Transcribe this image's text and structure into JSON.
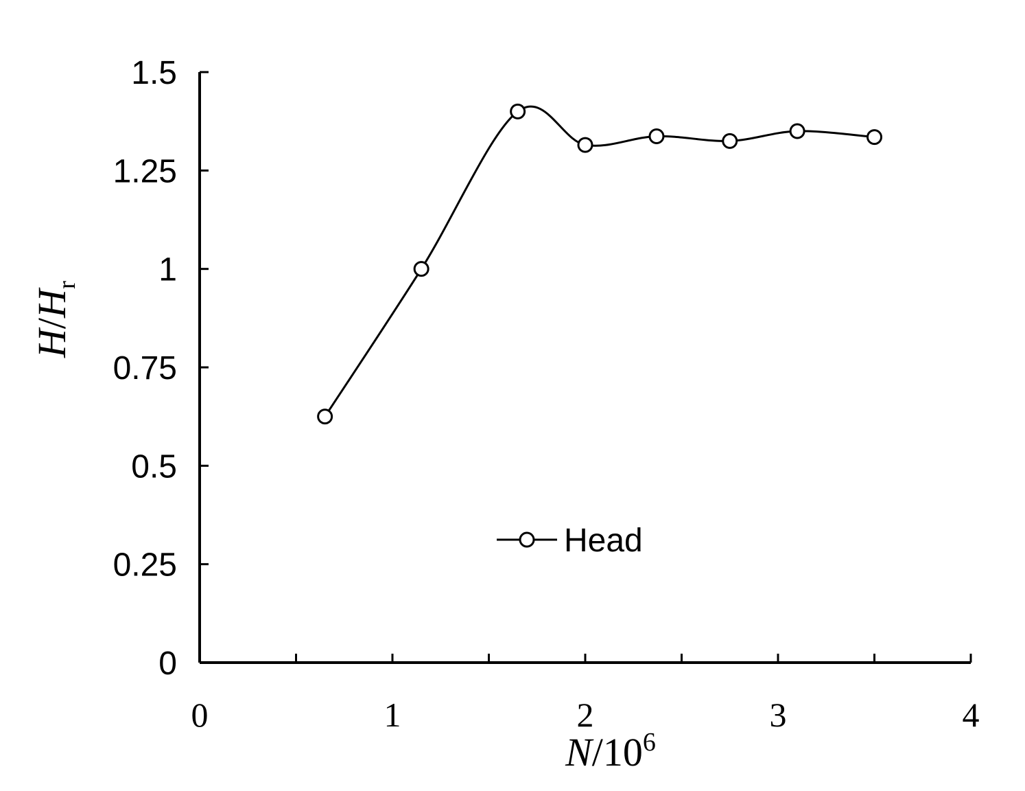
{
  "chart_data": {
    "type": "line",
    "title": "",
    "xlabel": {
      "var": "N",
      "rest": "/10",
      "sup": "6"
    },
    "ylabel": {
      "var1": "H",
      "slash": "/",
      "var2": "H",
      "sub": "r"
    },
    "xlim": [
      0,
      4
    ],
    "ylim": [
      0,
      1.5
    ],
    "x_ticks": [
      0,
      1,
      2,
      3,
      4
    ],
    "x_tick_labels": [
      "0",
      "1",
      "2",
      "3",
      "4"
    ],
    "x_minor_ticks": [
      0.5,
      1.5,
      2.5,
      3.5
    ],
    "y_ticks": [
      0,
      0.25,
      0.5,
      0.75,
      1,
      1.25,
      1.5
    ],
    "y_tick_labels": [
      "0",
      "0.25",
      "0.5",
      "0.75",
      "1",
      "1.25",
      "1.5"
    ],
    "grid": false,
    "legend": {
      "position": "center-bottom"
    },
    "series": [
      {
        "name": "Head",
        "color": "#000000",
        "marker": "open-circle",
        "smooth": true,
        "x": [
          0.65,
          1.15,
          1.65,
          2.0,
          2.37,
          2.75,
          3.1,
          3.5
        ],
        "y": [
          0.625,
          1.0,
          1.4,
          1.315,
          1.337,
          1.325,
          1.35,
          1.335
        ]
      }
    ]
  }
}
